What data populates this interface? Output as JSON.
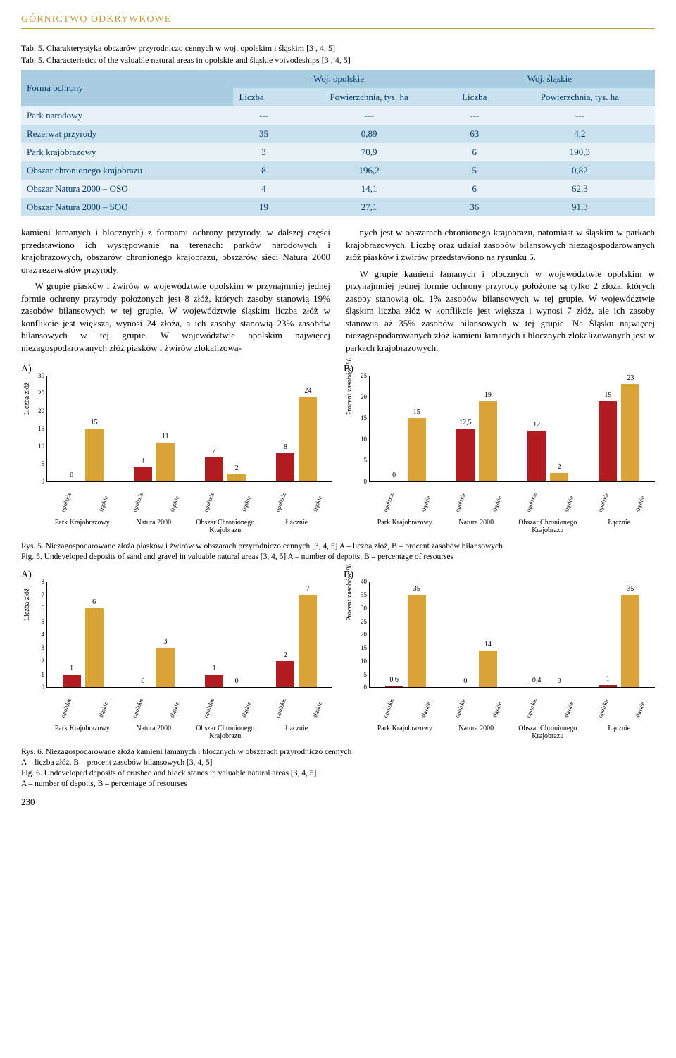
{
  "section_header": "GÓRNICTWO ODKRYWKOWE",
  "table": {
    "caption_pl": "Tab. 5. Charakterystyka obszarów przyrodniczo cennych w woj. opolskim i śląskim [3 , 4, 5]",
    "caption_en": "Tab. 5. Characteristics of the valuable natural areas in opolskie and śląskie voivodeships [3 , 4, 5]",
    "header_row1": [
      "Forma ochrony",
      "Woj. opolskie",
      "Woj. śląskie"
    ],
    "header_row2": [
      "Liczba",
      "Powierzchnia, tys. ha",
      "Liczba",
      "Powierzchnia, tys. ha"
    ],
    "rows": [
      {
        "label": "Park narodowy",
        "c": [
          "---",
          "---",
          "---",
          "---"
        ]
      },
      {
        "label": "Rezerwat przyrody",
        "c": [
          "35",
          "0,89",
          "63",
          "4,2"
        ]
      },
      {
        "label": "Park krajobrazowy",
        "c": [
          "3",
          "70,9",
          "6",
          "190,3"
        ]
      },
      {
        "label": "Obszar chronionego krajobrazu",
        "c": [
          "8",
          "196,2",
          "5",
          "0,82"
        ]
      },
      {
        "label": "Obszar Natura 2000 – OSO",
        "c": [
          "4",
          "14,1",
          "6",
          "62,3"
        ]
      },
      {
        "label": "Obszar Natura 2000 – SOO",
        "c": [
          "19",
          "27,1",
          "36",
          "91,3"
        ]
      }
    ]
  },
  "body_paragraphs": [
    "kamieni łamanych i blocznych) z formami ochrony przyrody, w dalszej części przedstawiono ich występowanie na terenach: parków narodowych i krajobrazowych, obszarów chronionego krajobrazu, obszarów sieci Natura 2000 oraz rezerwatów przyrody.",
    "W grupie piasków i żwirów w województwie opolskim w przynajmniej jednej formie ochrony przyrody położonych jest 8 złóż, których zasoby stanowią 19% zasobów bilansowych w tej grupie. W województwie śląskim liczba złóż w konflikcie jest większa, wynosi 24 złoża, a ich zasoby stanowią 23% zasobów bilansowych w tej grupie. W województwie opolskim najwięcej niezagospodarowanych złóż piasków i żwirów zlokalizowa-",
    "nych jest w obszarach chronionego krajobrazu, natomiast w śląskim w parkach krajobrazowych. Liczbę oraz udział zasobów bilansowych niezagospodarowanych złóż piasków i żwirów przedstawiono na rysunku 5.",
    "W grupie kamieni łamanych i blocznych w województwie opolskim w przynajmniej jednej formie ochrony przyrody położone są tylko 2 złoża, których zasoby stanowią ok. 1% zasobów bilansowych w tej grupie. W województwie śląskim liczba złóż w konflikcie jest większa i wynosi 7 złóż, ale ich zasoby stanowią aż 35% zasobów bilansowych w tej grupie. Na Śląsku najwięcej niezagospodarowanych złóż kamieni łamanych i blocznych zlokalizowanych jest w parkach krajobrazowych."
  ],
  "colors": {
    "bar_orange": "#d9a336",
    "bar_red": "#b01c22"
  },
  "chart_common": {
    "pair_labels": [
      "opolskie",
      "śląskie"
    ],
    "group_labels": [
      "Park Krajobrazowy",
      "Natura 2000",
      "Obszar Chronionego Krajobrazu",
      "Łącznie"
    ]
  },
  "fig5": {
    "caption_pl": "Rys. 5. Niezagospodarowane złoża piasków i żwirów w obszarach przyrodniczo cennych [3, 4, 5]  A – liczba złóż, B – procent zasobów bilansowych",
    "caption_en": "Fig. 5. Undeveloped deposits of sand and gravel in valuable natural areas [3, 4, 5] A – number of depoits, B – percentage of resourses",
    "A": {
      "ylabel": "Liczba złóż",
      "ymax": 30,
      "ytick_step": 5,
      "bars": [
        {
          "val": 0,
          "label": "0",
          "color": "#b01c22"
        },
        {
          "val": 15,
          "label": "15",
          "color": "#d9a336"
        },
        {
          "val": 4,
          "label": "4",
          "color": "#b01c22"
        },
        {
          "val": 11,
          "label": "11",
          "color": "#d9a336"
        },
        {
          "val": 7,
          "label": "7",
          "color": "#b01c22"
        },
        {
          "val": 2,
          "label": "2",
          "color": "#d9a336"
        },
        {
          "val": 8,
          "label": "8",
          "color": "#b01c22"
        },
        {
          "val": 24,
          "label": "24",
          "color": "#d9a336"
        }
      ]
    },
    "B": {
      "ylabel": "Procent zasobów, %",
      "ymax": 25,
      "ytick_step": 5,
      "bars": [
        {
          "val": 0,
          "label": "0",
          "color": "#b01c22"
        },
        {
          "val": 15,
          "label": "15",
          "color": "#d9a336"
        },
        {
          "val": 12.5,
          "label": "12,5",
          "color": "#b01c22"
        },
        {
          "val": 19,
          "label": "19",
          "color": "#d9a336"
        },
        {
          "val": 12,
          "label": "12",
          "color": "#b01c22"
        },
        {
          "val": 2,
          "label": "2",
          "color": "#d9a336"
        },
        {
          "val": 19,
          "label": "19",
          "color": "#b01c22"
        },
        {
          "val": 23,
          "label": "23",
          "color": "#d9a336"
        }
      ]
    }
  },
  "fig6": {
    "caption_pl": "Rys. 6. Niezagospodarowane złoża kamieni łamanych i blocznych w obszarach przyrodniczo cennych\nA – liczba złóż, B – procent zasobów bilansowych [3, 4, 5]",
    "caption_en": "Fig. 6. Undeveloped deposits of crushed and block stones in valuable natural areas [3, 4, 5]\nA – number of depoits, B – percentage of resourses",
    "A": {
      "ylabel": "Liczba złóż",
      "ymax": 8,
      "ytick_step": 1,
      "bars": [
        {
          "val": 1,
          "label": "1",
          "color": "#b01c22"
        },
        {
          "val": 6,
          "label": "6",
          "color": "#d9a336"
        },
        {
          "val": 0,
          "label": "0",
          "color": "#b01c22"
        },
        {
          "val": 3,
          "label": "3",
          "color": "#d9a336"
        },
        {
          "val": 1,
          "label": "1",
          "color": "#b01c22"
        },
        {
          "val": 0,
          "label": "0",
          "color": "#d9a336"
        },
        {
          "val": 2,
          "label": "2",
          "color": "#b01c22"
        },
        {
          "val": 7,
          "label": "7",
          "color": "#d9a336"
        }
      ]
    },
    "B": {
      "ylabel": "Procent zasobów, %",
      "ymax": 40,
      "ytick_step": 5,
      "bars": [
        {
          "val": 0.6,
          "label": "0,6",
          "color": "#b01c22"
        },
        {
          "val": 35,
          "label": "35",
          "color": "#d9a336"
        },
        {
          "val": 0,
          "label": "0",
          "color": "#b01c22"
        },
        {
          "val": 14,
          "label": "14",
          "color": "#d9a336"
        },
        {
          "val": 0.4,
          "label": "0,4",
          "color": "#b01c22"
        },
        {
          "val": 0,
          "label": "0",
          "color": "#d9a336"
        },
        {
          "val": 1,
          "label": "1",
          "color": "#b01c22"
        },
        {
          "val": 35,
          "label": "35",
          "color": "#d9a336"
        }
      ]
    }
  },
  "chart_letters": {
    "A": "A)",
    "B": "B)"
  },
  "page_number": "230"
}
